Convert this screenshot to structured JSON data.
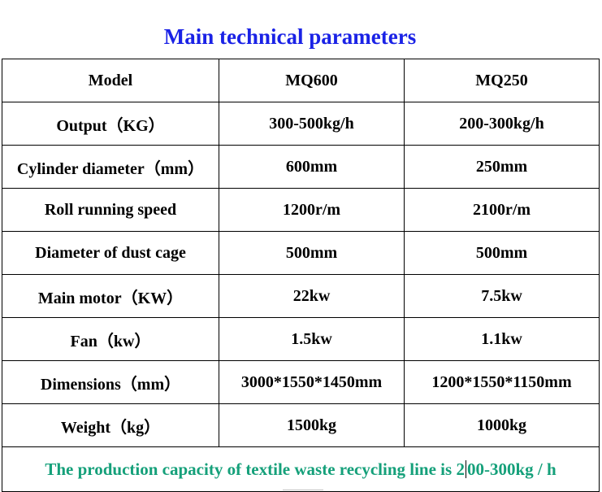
{
  "title": "Main technical parameters",
  "table": {
    "header": [
      "Model",
      "MQ600",
      "MQ250"
    ],
    "rows": [
      [
        "Output（KG）",
        "300-500kg/h",
        "200-300kg/h"
      ],
      [
        "Cylinder diameter（mm）",
        "600mm",
        "250mm"
      ],
      [
        "Roll running speed",
        "1200r/m",
        "2100r/m"
      ],
      [
        "Diameter of dust cage",
        "500mm",
        "500mm"
      ],
      [
        "Main motor（KW）",
        "22kw",
        "7.5kw"
      ],
      [
        "Fan（kw）",
        "1.5kw",
        "1.1kw"
      ],
      [
        "Dimensions（mm）",
        "3000*1550*1450mm",
        "1200*1550*1150mm"
      ],
      [
        "Weight（kg）",
        "1500kg",
        "1000kg"
      ]
    ]
  },
  "note": {
    "before_caret": "The production capacity of textile waste recycling line is 2",
    "after_caret": "00-300kg / h"
  },
  "colors": {
    "title": "#1a22e6",
    "note": "#15a07a",
    "border": "#000000"
  }
}
